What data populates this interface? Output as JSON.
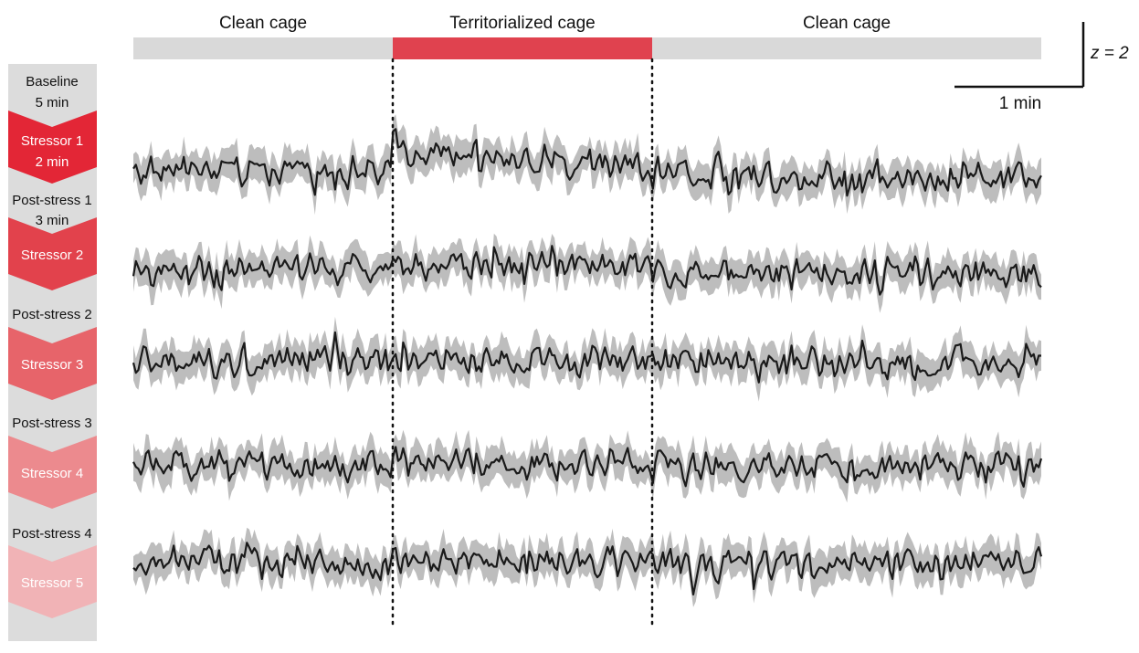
{
  "chart_data": {
    "type": "line",
    "phase_bar": [
      {
        "label": "Clean cage",
        "color": "#d9d9d9",
        "text_color": "#111111"
      },
      {
        "label": "Territorialized cage",
        "color": "#e0424f",
        "text_color": "#d6303e"
      },
      {
        "label": "Clean cage",
        "color": "#d9d9d9",
        "text_color": "#111111"
      }
    ],
    "time_axis_min": [
      0,
      17.5
    ],
    "phase_boundaries_min": [
      5,
      10
    ],
    "scale_bar": {
      "x_label": "1 min",
      "x_value_min": 1,
      "y_label": "z = 2",
      "y_value_z": 2
    },
    "protocol_steps": [
      {
        "label": "Baseline",
        "duration": "5 min",
        "kind": "rest"
      },
      {
        "label": "Stressor 1",
        "duration": "2 min",
        "kind": "stress",
        "color": "#e32636"
      },
      {
        "label": "Post-stress 1",
        "duration": "3 min",
        "kind": "rest"
      },
      {
        "label": "Stressor 2",
        "duration": "",
        "kind": "stress",
        "color": "#e2424c"
      },
      {
        "label": "Post-stress 2",
        "duration": "",
        "kind": "rest"
      },
      {
        "label": "Stressor 3",
        "duration": "",
        "kind": "stress",
        "color": "#e7646a"
      },
      {
        "label": "Post-stress 3",
        "duration": "",
        "kind": "rest"
      },
      {
        "label": "Stressor 4",
        "duration": "",
        "kind": "stress",
        "color": "#ec8a8e"
      },
      {
        "label": "Post-stress 4",
        "duration": "",
        "kind": "rest"
      },
      {
        "label": "Stressor 5",
        "duration": "",
        "kind": "stress",
        "color": "#f1b3b6"
      }
    ],
    "series": [
      {
        "trial": 1,
        "segment_means_z": [
          0.0,
          1.2,
          -0.4
        ],
        "decay_in_middle": true
      },
      {
        "trial": 2,
        "segment_means_z": [
          0.1,
          0.45,
          -0.3
        ],
        "decay_in_middle": false
      },
      {
        "trial": 3,
        "segment_means_z": [
          0.0,
          0.05,
          -0.05
        ],
        "decay_in_middle": false
      },
      {
        "trial": 4,
        "segment_means_z": [
          0.0,
          0.25,
          0.0
        ],
        "decay_in_middle": false
      },
      {
        "trial": 5,
        "segment_means_z": [
          0.0,
          0.2,
          -0.1
        ],
        "decay_in_middle": false
      }
    ],
    "colors": {
      "trace": "#1a1a1a",
      "sem_band": "#bdbdbd",
      "divider": "#111111"
    }
  }
}
